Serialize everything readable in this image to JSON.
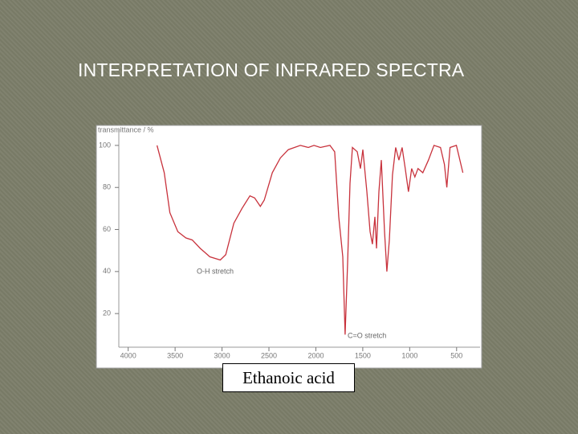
{
  "chart_data": {
    "type": "line",
    "title": "INTERPRETATION OF INFRARED SPECTRA",
    "y_label": "transmittance / %",
    "caption": "Ethanoic acid",
    "annotations": [
      "O-H stretch",
      "C=O stretch"
    ],
    "xlim": [
      4100,
      250
    ],
    "xticks": [
      4000,
      3500,
      3000,
      2500,
      2000,
      1500,
      1000,
      500
    ],
    "ylim": [
      4,
      108
    ],
    "yticks": [
      20,
      40,
      60,
      80,
      100
    ],
    "color": "#c8323c",
    "x": [
      3693,
      3616,
      3556,
      3471,
      3386,
      3317,
      3232,
      3130,
      3019,
      2960,
      2874,
      2788,
      2703,
      2652,
      2592,
      2550,
      2464,
      2379,
      2294,
      2166,
      2080,
      2020,
      1952,
      1850,
      1799,
      1756,
      1713,
      1688,
      1662,
      1636,
      1610,
      1559,
      1525,
      1499,
      1456,
      1422,
      1397,
      1371,
      1354,
      1328,
      1302,
      1268,
      1243,
      1217,
      1183,
      1149,
      1115,
      1081,
      1047,
      1013,
      979,
      945,
      911,
      860,
      800,
      741,
      672,
      630,
      604,
      570,
      502,
      433
    ],
    "values": [
      100,
      87,
      68,
      59,
      56,
      55,
      51,
      47,
      45.5,
      48,
      63,
      70,
      76,
      75,
      71,
      74,
      87,
      94,
      98,
      100,
      99,
      100,
      99,
      100,
      97,
      66,
      47,
      10,
      44,
      82,
      99,
      97,
      89,
      98,
      78,
      59,
      53,
      66,
      51,
      78,
      93,
      59,
      40,
      55,
      86,
      99,
      93,
      99,
      89,
      78,
      89,
      85,
      89,
      87,
      93,
      100,
      99,
      91,
      80,
      99,
      100,
      87
    ]
  }
}
